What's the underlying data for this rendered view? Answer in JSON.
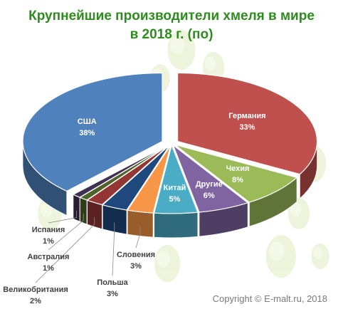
{
  "title": {
    "line1": "Крупнейшие производители хмеля в мире",
    "line2": "в 2018 г. (по)"
  },
  "copyright": "Copyright © E-malt.ru, 2018",
  "colors": {
    "title": "#2e8b1e",
    "background_decor": "hop cones (light green)"
  },
  "chart_data": {
    "type": "pie",
    "style": "3d exploded",
    "title": "Крупнейшие производители хмеля в мире в 2018 г. (по)",
    "unit": "%",
    "slices": [
      {
        "label": "Германия",
        "value": 33,
        "value_label": "33%",
        "color": "#c0504d"
      },
      {
        "label": "Чехия",
        "value": 8,
        "value_label": "8%",
        "color": "#9bbb59"
      },
      {
        "label": "Другие",
        "value": 6,
        "value_label": "6%",
        "color": "#8064a2"
      },
      {
        "label": "Китай",
        "value": 5,
        "value_label": "5%",
        "color": "#4bacc6"
      },
      {
        "label": "Словения",
        "value": 3,
        "value_label": "3%",
        "color": "#f79646"
      },
      {
        "label": "Польша",
        "value": 3,
        "value_label": "3%",
        "color": "#1f497d"
      },
      {
        "label": "Великобритания",
        "value": 2,
        "value_label": "2%",
        "color": "#943634"
      },
      {
        "label": "Австралия",
        "value": 1,
        "value_label": "1%",
        "color": "#4f6228"
      },
      {
        "label": "Испания",
        "value": 1,
        "value_label": "1%",
        "color": "#3f3151"
      },
      {
        "label": "США",
        "value": 38,
        "value_label": "38%",
        "color": "#4f81bd"
      }
    ]
  }
}
